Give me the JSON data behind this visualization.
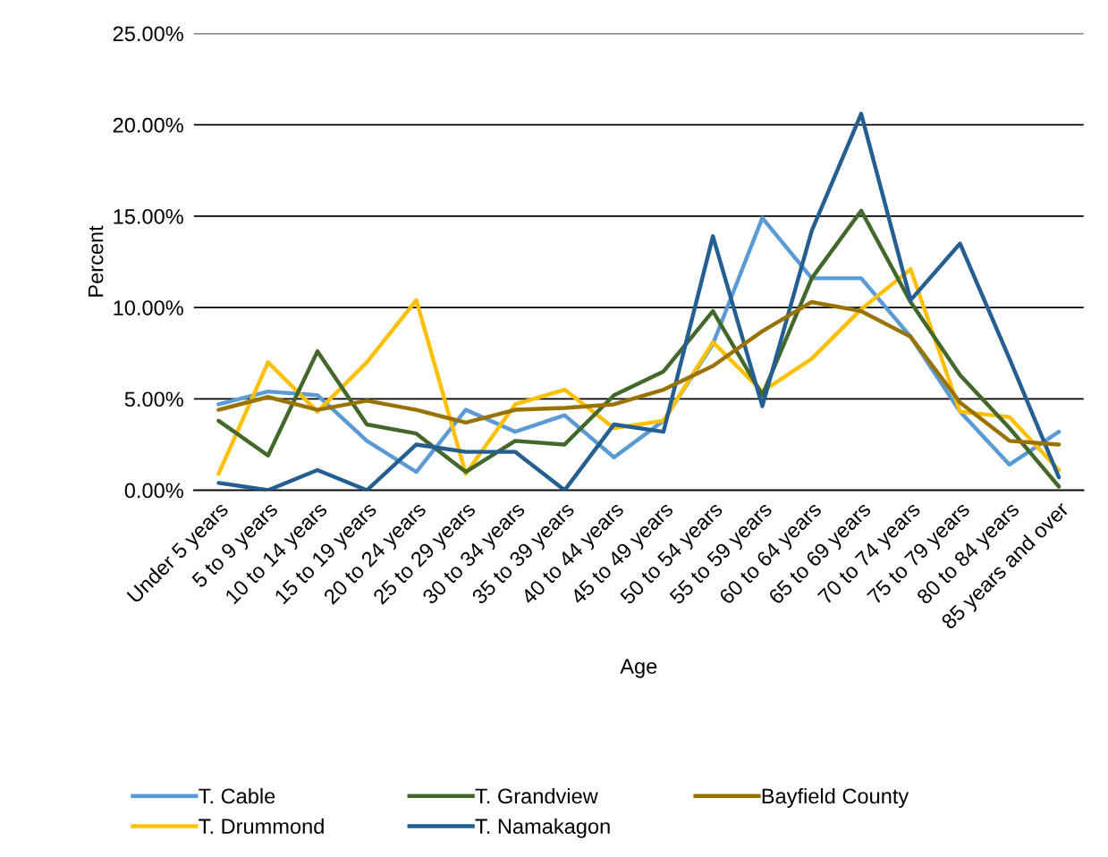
{
  "chart_data": {
    "type": "line",
    "xlabel": "Age",
    "ylabel": "Percent",
    "categories": [
      "Under 5 years",
      "5 to 9 years",
      "10 to 14 years",
      "15 to 19 years",
      "20 to 24 years",
      "25 to 29 years",
      "30 to 34 years",
      "35 to 39 years",
      "40 to 44 years",
      "45 to 49 years",
      "50 to 54 years",
      "55 to 59 years",
      "60 to 64 years",
      "65 to 69 years",
      "70 to 74 years",
      "75 to 79 years",
      "80 to 84 years",
      "85 years and over"
    ],
    "series": [
      {
        "name": "T. Cable",
        "color": "#5b9bd5",
        "values": [
          4.7,
          5.4,
          5.2,
          2.7,
          1.0,
          4.4,
          3.2,
          4.1,
          1.8,
          3.8,
          8.0,
          14.9,
          11.6,
          11.6,
          8.4,
          4.3,
          1.4,
          3.2
        ]
      },
      {
        "name": "T. Drummond",
        "color": "#ffc000",
        "values": [
          0.9,
          7.0,
          4.3,
          7.0,
          10.4,
          0.9,
          4.7,
          5.5,
          3.4,
          3.8,
          8.1,
          5.4,
          7.2,
          9.9,
          12.1,
          4.3,
          4.0,
          1.1
        ]
      },
      {
        "name": "T. Grandview",
        "color": "#43682b",
        "values": [
          3.8,
          1.9,
          7.6,
          3.6,
          3.1,
          1.0,
          2.7,
          2.5,
          5.2,
          6.5,
          9.8,
          5.2,
          11.6,
          15.3,
          10.3,
          6.3,
          3.4,
          0.2
        ]
      },
      {
        "name": "T. Namakagon",
        "color": "#255e91",
        "values": [
          0.4,
          0.0,
          1.1,
          0.0,
          2.5,
          2.1,
          2.1,
          0.0,
          3.6,
          3.2,
          13.9,
          4.6,
          14.2,
          20.6,
          10.4,
          13.5,
          7.2,
          0.7
        ]
      },
      {
        "name": "Bayfield County",
        "color": "#997300",
        "values": [
          4.4,
          5.1,
          4.4,
          4.9,
          4.4,
          3.7,
          4.4,
          4.5,
          4.7,
          5.5,
          6.8,
          8.7,
          10.3,
          9.8,
          8.4,
          4.8,
          2.7,
          2.5
        ]
      }
    ],
    "ylim": [
      0,
      25
    ],
    "yticks": [
      {
        "value": 0,
        "label": "0.00%"
      },
      {
        "value": 5,
        "label": "5.00%"
      },
      {
        "value": 10,
        "label": "10.00%"
      },
      {
        "value": 15,
        "label": "15.00%"
      },
      {
        "value": 20,
        "label": "20.00%"
      },
      {
        "value": 25,
        "label": "25.00%"
      }
    ],
    "grid": "y",
    "legend": "bottom",
    "marker": "none",
    "line_style": "solid"
  }
}
